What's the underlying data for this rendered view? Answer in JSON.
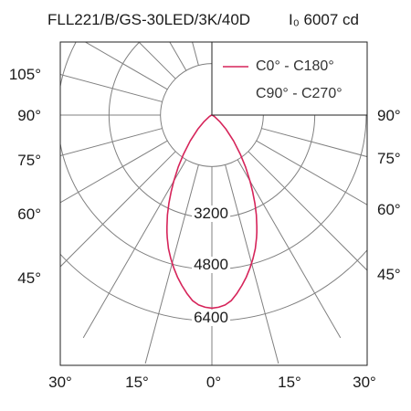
{
  "header": {
    "product": "FLL221/B/GS-30LED/3K/40D",
    "intensity_label": "I₀ 6007 cd"
  },
  "colors": {
    "c0_c180": "#d6245a",
    "c90_c270": "#333333",
    "grid": "#808080"
  },
  "chart_data": {
    "type": "polar",
    "title": "",
    "left_angle_labels": [
      "105°",
      "90°",
      "75°",
      "60°",
      "45°"
    ],
    "right_angle_labels": [
      "90°",
      "75°",
      "60°",
      "45°"
    ],
    "bottom_angle_labels": [
      "30°",
      "15°",
      "0°",
      "15°",
      "30°"
    ],
    "radial_ticks": [
      1600,
      3200,
      4800,
      6400
    ],
    "radial_tick_labels": [
      "3200",
      "4800",
      "6400"
    ],
    "rmax": 8000,
    "angle_step_deg": 15,
    "legend": {
      "placement": "top-right",
      "entries": [
        "C0° - C180°",
        "C90° - C270°"
      ]
    },
    "series": [
      {
        "name": "C0° - C180°",
        "gamma_deg": [
          0,
          2,
          4,
          6,
          8,
          10,
          12,
          14,
          16,
          18,
          20,
          21,
          22,
          24,
          26,
          28,
          30,
          33,
          36,
          40,
          45,
          50,
          60,
          70,
          80,
          90
        ],
        "intensity_cd": [
          6007,
          5980,
          5920,
          5800,
          5600,
          5380,
          5150,
          4900,
          4640,
          4370,
          4060,
          3900,
          3730,
          3400,
          3050,
          2700,
          2370,
          1920,
          1500,
          1050,
          620,
          330,
          90,
          25,
          6,
          0
        ]
      }
    ]
  }
}
